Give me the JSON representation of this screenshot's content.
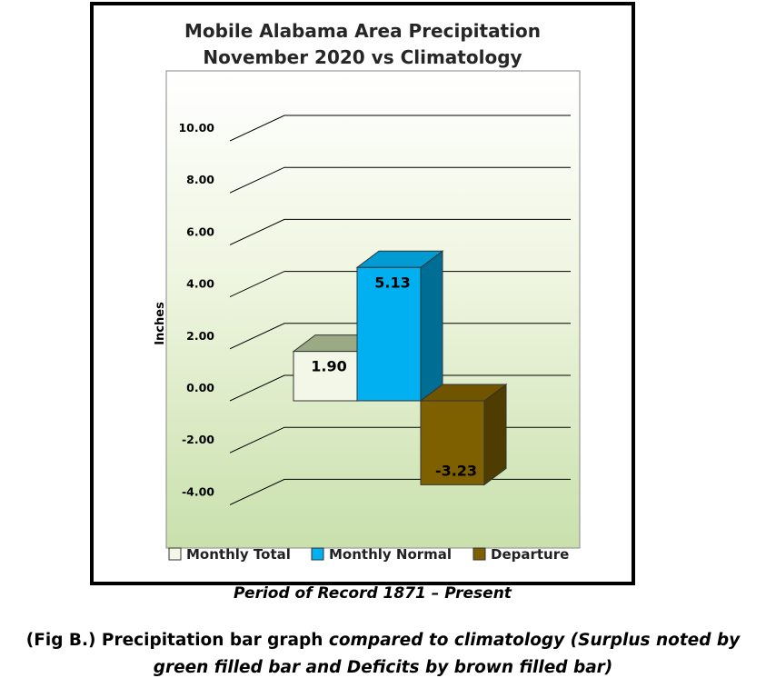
{
  "chart_data": {
    "type": "bar",
    "title_line1": "Mobile Alabama Area Precipitation",
    "title_line2": "November 2020 vs Climatology",
    "ylabel": "Inches",
    "ylim": [
      -4,
      10
    ],
    "yticks": [
      "10.00",
      "8.00",
      "6.00",
      "4.00",
      "2.00",
      "0.00",
      "-2.00",
      "-4.00"
    ],
    "grid": true,
    "legend_position": "bottom",
    "series": [
      {
        "name": "Monthly Total",
        "value": 1.9,
        "label": "1.90",
        "color": "#f3f7e8"
      },
      {
        "name": "Monthly Normal",
        "value": 5.13,
        "label": "5.13",
        "color": "#00b0f0"
      },
      {
        "name": "Departure",
        "value": -3.23,
        "label": "-3.23",
        "color": "#7f6000"
      }
    ]
  },
  "captions": {
    "period": "Period of Record 1871 – Present",
    "fig_part1": "(Fig B.) Precipitation bar graph ",
    "fig_part2": "compared to climatology (Surplus noted by",
    "fig_line2": "green filled bar and Deficits by brown filled bar)"
  }
}
